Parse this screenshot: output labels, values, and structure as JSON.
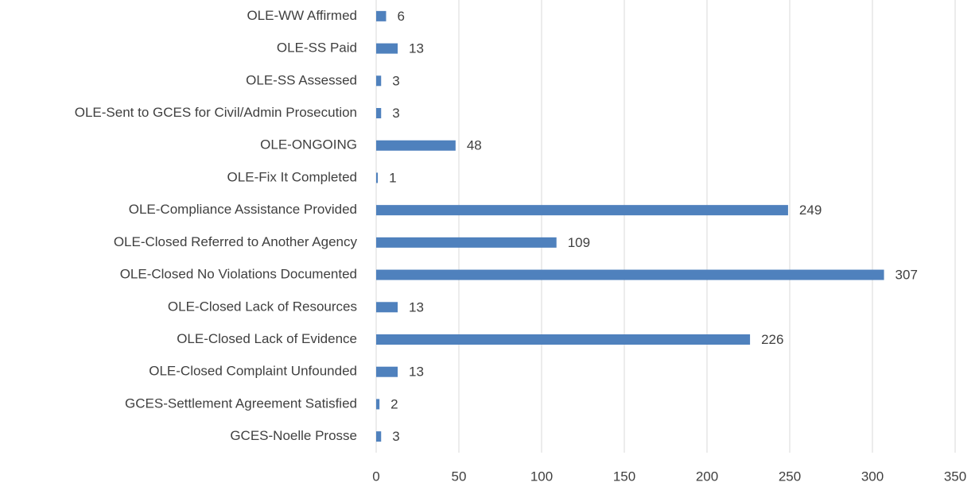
{
  "chart_data": {
    "type": "barh",
    "categories": [
      "OLE-WW Affirmed",
      "OLE-SS Paid",
      "OLE-SS Assessed",
      "OLE-Sent to GCES for Civil/Admin Prosecution",
      "OLE-ONGOING",
      "OLE-Fix It Completed",
      "OLE-Compliance Assistance Provided",
      "OLE-Closed Referred to Another Agency",
      "OLE-Closed No Violations Documented",
      "OLE-Closed Lack of Resources",
      "OLE-Closed Lack of Evidence",
      "OLE-Closed Complaint Unfounded",
      "GCES-Settlement Agreement Satisfied",
      "GCES-Noelle Prosse"
    ],
    "values": [
      6,
      13,
      3,
      3,
      48,
      1,
      249,
      109,
      307,
      13,
      226,
      13,
      2,
      3
    ],
    "color": "#4f81bd",
    "xlim": [
      0,
      350
    ],
    "xticks": [
      0,
      50,
      100,
      150,
      200,
      250,
      300,
      350
    ],
    "grid": true
  }
}
